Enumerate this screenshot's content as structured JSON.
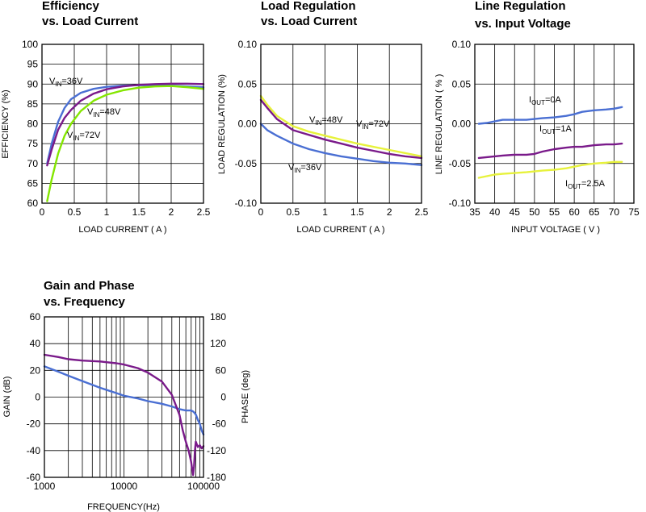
{
  "colors": {
    "blue": "#4a6fd3",
    "purple": "#7a1a8a",
    "green": "#84e600",
    "yellow": "#e7f23c",
    "frame": "#000000",
    "grid": "#000000"
  },
  "chart_data": [
    {
      "id": "efficiency",
      "type": "line",
      "title_lines": [
        "Efficiency",
        "vs. Load Current"
      ],
      "xlabel": "LOAD CURRENT ( A )",
      "ylabel": "EFFICIENCY (%)",
      "xlim": [
        0,
        2.5
      ],
      "ylim": [
        60,
        100
      ],
      "xticks": [
        0,
        0.5,
        1,
        1.5,
        2,
        2.5
      ],
      "xticklabels": [
        "0",
        "0.5",
        "1",
        "1.5",
        "2",
        "2.5"
      ],
      "yticks": [
        60,
        65,
        70,
        75,
        80,
        85,
        90,
        95,
        100
      ],
      "yticklabels": [
        "60",
        "65",
        "70",
        "75",
        "80",
        "85",
        "90",
        "95",
        "100"
      ],
      "grid": true,
      "series": [
        {
          "name": "VIN=36V",
          "color": "blue",
          "x": [
            0.08,
            0.15,
            0.25,
            0.35,
            0.45,
            0.6,
            0.8,
            1.0,
            1.25,
            1.5,
            1.75,
            2.0,
            2.25,
            2.5
          ],
          "y": [
            70,
            75,
            80.5,
            84,
            86.2,
            87.8,
            88.8,
            89.3,
            89.6,
            89.7,
            89.7,
            89.6,
            89.4,
            89.2
          ]
        },
        {
          "name": "VIN=48V",
          "color": "purple",
          "x": [
            0.08,
            0.15,
            0.25,
            0.35,
            0.45,
            0.6,
            0.8,
            1.0,
            1.25,
            1.5,
            1.75,
            2.0,
            2.25,
            2.5
          ],
          "y": [
            69.5,
            73.5,
            78.5,
            81.5,
            83.5,
            85.8,
            87.6,
            88.7,
            89.4,
            89.8,
            90,
            90.1,
            90.1,
            90
          ]
        },
        {
          "name": "VIN=72V",
          "color": "green",
          "x": [
            0.08,
            0.15,
            0.25,
            0.35,
            0.45,
            0.6,
            0.8,
            1.0,
            1.25,
            1.5,
            1.75,
            2.0,
            2.25,
            2.5
          ],
          "y": [
            60.5,
            66,
            72.5,
            77,
            80,
            83.2,
            85.8,
            87.3,
            88.4,
            89.1,
            89.4,
            89.5,
            89.2,
            88.8
          ]
        }
      ],
      "annotations": [
        {
          "base": "V",
          "sub": "IN",
          "text": "=36V"
        },
        {
          "base": "V",
          "sub": "IN",
          "text": "=48V"
        },
        {
          "base": "V",
          "sub": "IN",
          "text": "=72V"
        }
      ]
    },
    {
      "id": "load-regulation",
      "type": "line",
      "title_lines": [
        "Load Regulation",
        "vs. Load Current"
      ],
      "xlabel": "LOAD CURRENT ( A )",
      "ylabel": "LOAD REGULATION (%)",
      "xlim": [
        0,
        2.5
      ],
      "ylim": [
        -0.1,
        0.1
      ],
      "xticks": [
        0,
        0.5,
        1,
        1.5,
        2,
        2.5
      ],
      "xticklabels": [
        "0",
        "0.5",
        "1",
        "1.5",
        "2",
        "2.5"
      ],
      "yticks": [
        -0.1,
        -0.05,
        0,
        0.05,
        0.1
      ],
      "yticklabels": [
        "-0.10",
        "-0.05",
        "0.00",
        "0.05",
        "0.10"
      ],
      "grid": true,
      "series": [
        {
          "name": "VIN=36V",
          "color": "blue",
          "x": [
            0,
            0.1,
            0.25,
            0.5,
            0.75,
            1.0,
            1.25,
            1.5,
            1.75,
            2.0,
            2.25,
            2.5
          ],
          "y": [
            0.0,
            -0.008,
            -0.015,
            -0.025,
            -0.032,
            -0.037,
            -0.041,
            -0.044,
            -0.047,
            -0.049,
            -0.05,
            -0.052
          ]
        },
        {
          "name": "VIN=48V",
          "color": "purple",
          "x": [
            0,
            0.1,
            0.25,
            0.5,
            0.75,
            1.0,
            1.25,
            1.5,
            1.75,
            2.0,
            2.25,
            2.5
          ],
          "y": [
            0.03,
            0.02,
            0.006,
            -0.008,
            -0.014,
            -0.02,
            -0.025,
            -0.03,
            -0.034,
            -0.038,
            -0.041,
            -0.043
          ]
        },
        {
          "name": "VIN=72V",
          "color": "yellow",
          "x": [
            0,
            0.1,
            0.25,
            0.5,
            0.75,
            1.0,
            1.25,
            1.5,
            1.75,
            2.0,
            2.25,
            2.5
          ],
          "y": [
            0.035,
            0.024,
            0.01,
            -0.003,
            -0.01,
            -0.015,
            -0.02,
            -0.025,
            -0.029,
            -0.033,
            -0.037,
            -0.041
          ]
        }
      ],
      "annotations": [
        {
          "base": "V",
          "sub": "IN",
          "text": "=48V"
        },
        {
          "base": "V",
          "sub": "IN",
          "text": "=72V"
        },
        {
          "base": "V",
          "sub": "IN",
          "text": "=36V"
        }
      ]
    },
    {
      "id": "line-regulation",
      "type": "line",
      "title_lines": [
        "Line Regulation",
        "vs. Input Voltage"
      ],
      "xlabel": "INPUT VOLTAGE ( V )",
      "ylabel": "LINE REGULATION ( % )",
      "xlim": [
        35,
        75
      ],
      "ylim": [
        -0.1,
        0.1
      ],
      "xticks": [
        35,
        40,
        45,
        50,
        55,
        60,
        65,
        70,
        75
      ],
      "xticklabels": [
        "35",
        "40",
        "45",
        "50",
        "55",
        "60",
        "65",
        "70",
        "75"
      ],
      "yticks": [
        -0.1,
        -0.05,
        0,
        0.05,
        0.1
      ],
      "yticklabels": [
        "-0.10",
        "-0.05",
        "0.00",
        "0.05",
        "0.10"
      ],
      "grid": true,
      "series": [
        {
          "name": "IOUT=0A",
          "color": "blue",
          "x": [
            36,
            38,
            40,
            42,
            45,
            48,
            50,
            52,
            55,
            58,
            60,
            62,
            65,
            68,
            70,
            72
          ],
          "y": [
            0.0,
            0.001,
            0.003,
            0.005,
            0.005,
            0.005,
            0.006,
            0.007,
            0.008,
            0.01,
            0.012,
            0.015,
            0.017,
            0.018,
            0.019,
            0.021
          ]
        },
        {
          "name": "IOUT=1A",
          "color": "purple",
          "x": [
            36,
            38,
            40,
            42,
            45,
            48,
            50,
            52,
            55,
            58,
            60,
            62,
            65,
            68,
            70,
            72
          ],
          "y": [
            -0.043,
            -0.042,
            -0.041,
            -0.04,
            -0.039,
            -0.039,
            -0.038,
            -0.035,
            -0.032,
            -0.03,
            -0.029,
            -0.029,
            -0.027,
            -0.026,
            -0.026,
            -0.025
          ]
        },
        {
          "name": "IOUT=2.5A",
          "color": "yellow",
          "x": [
            36,
            38,
            40,
            42,
            45,
            48,
            50,
            52,
            55,
            58,
            60,
            62,
            65,
            68,
            70,
            72
          ],
          "y": [
            -0.068,
            -0.066,
            -0.064,
            -0.063,
            -0.062,
            -0.061,
            -0.06,
            -0.059,
            -0.058,
            -0.056,
            -0.054,
            -0.052,
            -0.05,
            -0.049,
            -0.048,
            -0.048
          ]
        }
      ],
      "annotations": [
        {
          "base": "I",
          "sub": "OUT",
          "text": "=0A"
        },
        {
          "base": "I",
          "sub": "OUT",
          "text": "=1A"
        },
        {
          "base": "I",
          "sub": "OUT",
          "text": "=2.5A"
        }
      ]
    },
    {
      "id": "gain-phase",
      "type": "line",
      "title_lines": [
        "Gain and Phase",
        "vs. Frequency"
      ],
      "xlabel": "FREQUENCY(Hz)",
      "ylabel": "GAIN (dB)",
      "y2label": "PHASE (deg)",
      "xscale": "log",
      "xlim": [
        1000,
        100000
      ],
      "ylim": [
        -60,
        60
      ],
      "y2lim": [
        -180,
        180
      ],
      "xticks": [
        1000,
        10000,
        100000
      ],
      "xticklabels": [
        "1000",
        "10000",
        "100000"
      ],
      "yticks": [
        -60,
        -40,
        -20,
        0,
        20,
        40,
        60
      ],
      "yticklabels": [
        "-60",
        "-40",
        "-20",
        "0",
        "20",
        "40",
        "60"
      ],
      "y2ticks": [
        -180,
        -120,
        -60,
        0,
        60,
        120,
        180
      ],
      "y2ticklabels": [
        "-180",
        "-120",
        "-60",
        "0",
        "60",
        "120",
        "180"
      ],
      "grid": true,
      "series": [
        {
          "name": "",
          "axis": "left",
          "color": "blue",
          "x": [
            1000,
            1500,
            2000,
            3000,
            5000,
            8000,
            10000,
            15000,
            20000,
            30000,
            40000,
            50000,
            60000,
            70000,
            75000,
            80000,
            85000,
            90000,
            95000,
            100000
          ],
          "y": [
            23,
            19,
            16,
            12,
            7,
            3,
            1,
            -1,
            -3,
            -5,
            -7,
            -9,
            -10,
            -10,
            -11,
            -13,
            -17,
            -20,
            -25,
            -28
          ]
        },
        {
          "name": "",
          "axis": "right",
          "color": "purple",
          "x": [
            1000,
            1500,
            2000,
            3000,
            5000,
            8000,
            10000,
            15000,
            20000,
            30000,
            40000,
            50000,
            55000,
            60000,
            65000,
            70000,
            72000,
            74000,
            76000,
            78000,
            80000,
            82000,
            85000,
            90000,
            95000,
            100000
          ],
          "y": [
            95,
            90,
            85,
            82,
            80,
            76,
            73,
            65,
            55,
            35,
            5,
            -40,
            -75,
            -100,
            -120,
            -145,
            -160,
            -175,
            -155,
            -120,
            -100,
            -105,
            -112,
            -108,
            -115,
            -110
          ]
        }
      ]
    }
  ]
}
